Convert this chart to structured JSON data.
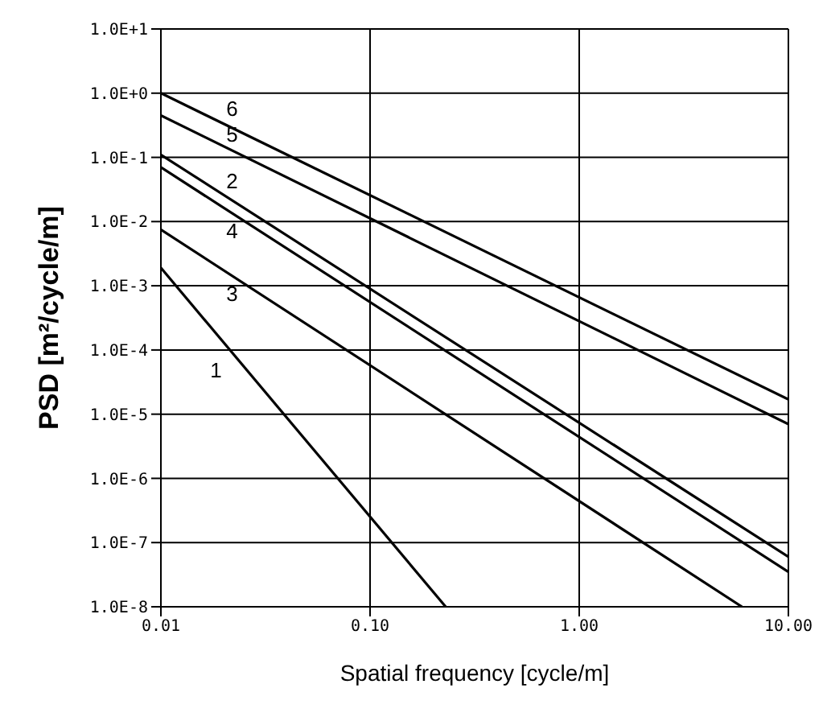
{
  "chart_data": {
    "type": "line",
    "xlabel": "Spatial frequency [cycle/m]",
    "ylabel": "PSD  [m²/cycle/m]",
    "log": "xy",
    "grid": true,
    "legend": false,
    "marker": "none",
    "line_style": "solid",
    "xlim": [
      0.01,
      10
    ],
    "ylim": [
      1e-08,
      10
    ],
    "xticks": [
      {
        "value": 0.01,
        "label": "0.01"
      },
      {
        "value": 0.1,
        "label": "0.10"
      },
      {
        "value": 1,
        "label": "1.00"
      },
      {
        "value": 10,
        "label": "10.00"
      }
    ],
    "yticks": [
      {
        "value": 1e-08,
        "label": "1.0E-8"
      },
      {
        "value": 1e-07,
        "label": "1.0E-7"
      },
      {
        "value": 1e-06,
        "label": "1.0E-6"
      },
      {
        "value": 1e-05,
        "label": "1.0E-5"
      },
      {
        "value": 0.0001,
        "label": "1.0E-4"
      },
      {
        "value": 0.001,
        "label": "1.0E-3"
      },
      {
        "value": 0.01,
        "label": "1.0E-2"
      },
      {
        "value": 0.1,
        "label": "1.0E-1"
      },
      {
        "value": 1,
        "label": "1.0E+0"
      },
      {
        "value": 10,
        "label": "1.0E+1"
      }
    ],
    "series": [
      {
        "name": "1",
        "color": "#000000",
        "x": [
          0.01,
          0.23
        ],
        "values": [
          0.0019,
          1e-08
        ]
      },
      {
        "name": "2",
        "color": "#000000",
        "x": [
          0.01,
          10
        ],
        "values": [
          0.11,
          6e-08
        ]
      },
      {
        "name": "3",
        "color": "#000000",
        "x": [
          0.01,
          6
        ],
        "values": [
          0.0075,
          1e-08
        ]
      },
      {
        "name": "4",
        "color": "#000000",
        "x": [
          0.01,
          10
        ],
        "values": [
          0.07,
          3.5e-08
        ]
      },
      {
        "name": "5",
        "color": "#000000",
        "x": [
          0.01,
          10
        ],
        "values": [
          0.45,
          7e-06
        ]
      },
      {
        "name": "6",
        "color": "#000000",
        "x": [
          0.01,
          10
        ],
        "values": [
          1,
          1.7e-05
        ]
      }
    ]
  }
}
